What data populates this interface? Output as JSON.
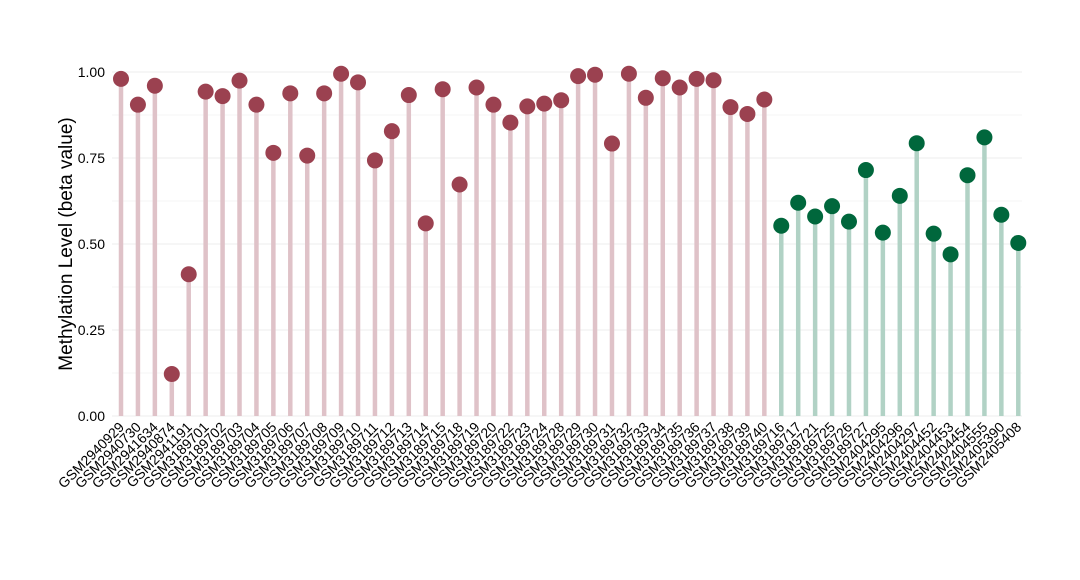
{
  "chart_data": {
    "type": "lollipop",
    "ylabel": "Methylation Level (beta value)",
    "ylim": [
      0,
      1
    ],
    "yticks": [
      0.0,
      0.25,
      0.5,
      0.75,
      1.0
    ],
    "ytick_labels": [
      "0.00",
      "0.25",
      "0.50",
      "0.75",
      "1.00"
    ],
    "grid": true,
    "legend": "none",
    "colors": {
      "group1_point": "#9b4150",
      "group1_stem": "#dfc2c8",
      "group2_point": "#00673c",
      "group2_stem": "#b1d2c5",
      "grid": "#eeeeee"
    },
    "categories": [
      "GSM2940929",
      "GSM2940730",
      "GSM2941634",
      "GSM2940874",
      "GSM2941191",
      "GSM3189701",
      "GSM3189702",
      "GSM3189703",
      "GSM3189704",
      "GSM3189705",
      "GSM3189706",
      "GSM3189707",
      "GSM3189708",
      "GSM3189709",
      "GSM3189710",
      "GSM3189711",
      "GSM3189712",
      "GSM3189713",
      "GSM3189714",
      "GSM3189715",
      "GSM3189718",
      "GSM3189719",
      "GSM3189720",
      "GSM3189722",
      "GSM3189723",
      "GSM3189724",
      "GSM3189728",
      "GSM3189729",
      "GSM3189730",
      "GSM3189731",
      "GSM3189732",
      "GSM3189733",
      "GSM3189734",
      "GSM3189735",
      "GSM3189736",
      "GSM3189737",
      "GSM3189738",
      "GSM3189739",
      "GSM3189740",
      "GSM3189716",
      "GSM3189717",
      "GSM3189721",
      "GSM3189725",
      "GSM3189726",
      "GSM3189727",
      "GSM2404295",
      "GSM2404296",
      "GSM2404297",
      "GSM2404452",
      "GSM2404453",
      "GSM2404454",
      "GSM2404555",
      "GSM2405390",
      "GSM2405408"
    ],
    "values": [
      0.98,
      0.905,
      0.96,
      0.122,
      0.412,
      0.943,
      0.93,
      0.975,
      0.905,
      0.765,
      0.938,
      0.757,
      0.938,
      0.995,
      0.97,
      0.743,
      0.828,
      0.933,
      0.56,
      0.95,
      0.673,
      0.955,
      0.905,
      0.853,
      0.9,
      0.908,
      0.918,
      0.988,
      0.992,
      0.792,
      0.995,
      0.925,
      0.982,
      0.955,
      0.98,
      0.976,
      0.898,
      0.878,
      0.92,
      0.553,
      0.62,
      0.58,
      0.61,
      0.565,
      0.715,
      0.533,
      0.64,
      0.793,
      0.53,
      0.47,
      0.7,
      0.81,
      0.585,
      0.503
    ],
    "groups": [
      1,
      1,
      1,
      1,
      1,
      1,
      1,
      1,
      1,
      1,
      1,
      1,
      1,
      1,
      1,
      1,
      1,
      1,
      1,
      1,
      1,
      1,
      1,
      1,
      1,
      1,
      1,
      1,
      1,
      1,
      1,
      1,
      1,
      1,
      1,
      1,
      1,
      1,
      1,
      2,
      2,
      2,
      2,
      2,
      2,
      2,
      2,
      2,
      2,
      2,
      2,
      2,
      2,
      2
    ]
  }
}
